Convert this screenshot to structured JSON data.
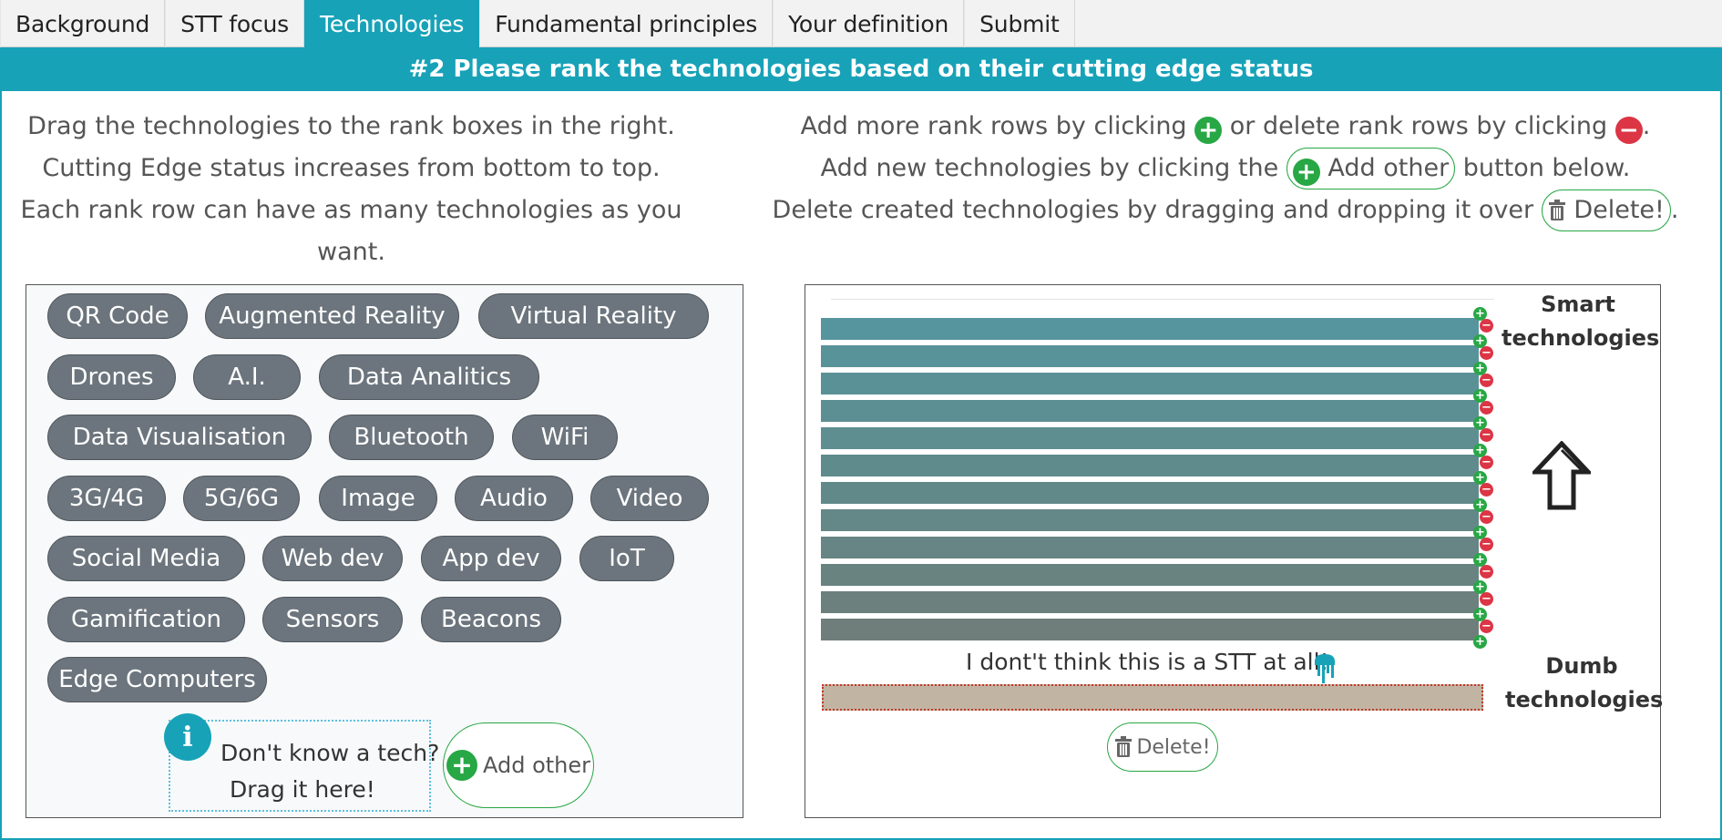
{
  "tabs": [
    {
      "label": "Background",
      "active": false
    },
    {
      "label": "STT focus",
      "active": false
    },
    {
      "label": "Technologies",
      "active": true
    },
    {
      "label": "Fundamental principles",
      "active": false
    },
    {
      "label": "Your definition",
      "active": false
    },
    {
      "label": "Submit",
      "active": false
    }
  ],
  "banner": "#2 Please rank the technologies based on their cutting edge status",
  "instructions_left": {
    "line1": "Drag the technologies to the rank boxes in the right.",
    "line2": "Cutting Edge status increases from bottom to top.",
    "line3": "Each rank row can have as many technologies as you",
    "line4": "want."
  },
  "instructions_right": {
    "line1_a": "Add more rank rows by clicking",
    "line1_b": "or delete rank rows by clicking",
    "line1_c": ".",
    "line2_a": "Add new technologies by clicking the",
    "line2_pill": "Add other",
    "line2_b": "button below.",
    "line3_a": "Delete created technologies by dragging and dropping it over",
    "line3_pill": "Delete!",
    "line3_c": "."
  },
  "technologies": [
    "QR Code",
    "Augmented Reality",
    "Virtual Reality",
    "Drones",
    "A.I.",
    "Data Analitics",
    "Data Visualisation",
    "Bluetooth",
    "WiFi",
    "3G/4G",
    "5G/6G",
    "Image",
    "Audio",
    "Video",
    "Social Media",
    "Web dev",
    "App dev",
    "IoT",
    "Gamification",
    "Sensors",
    "Beacons",
    "Edge Computers"
  ],
  "unknown_tech": {
    "line1": "Don't know a tech?",
    "line2": "Drag it here!",
    "info_glyph": "i"
  },
  "add_other_label": "Add other",
  "plus_glyph": "+",
  "minus_glyph": "−",
  "rank": {
    "row_colors": [
      "#56959d",
      "#589399",
      "#5a9196",
      "#5c8f93",
      "#5e8e90",
      "#608b8d",
      "#62898a",
      "#648787",
      "#678584",
      "#698381",
      "#6c807e",
      "#6f7e7b"
    ],
    "top_label_1": "Smart",
    "top_label_2": "technologies",
    "bottom_label_1": "Dumb",
    "bottom_label_2": "technologies",
    "not_stt_label": "I dont't think this is a STT at all!",
    "delete_label": "Delete!"
  }
}
